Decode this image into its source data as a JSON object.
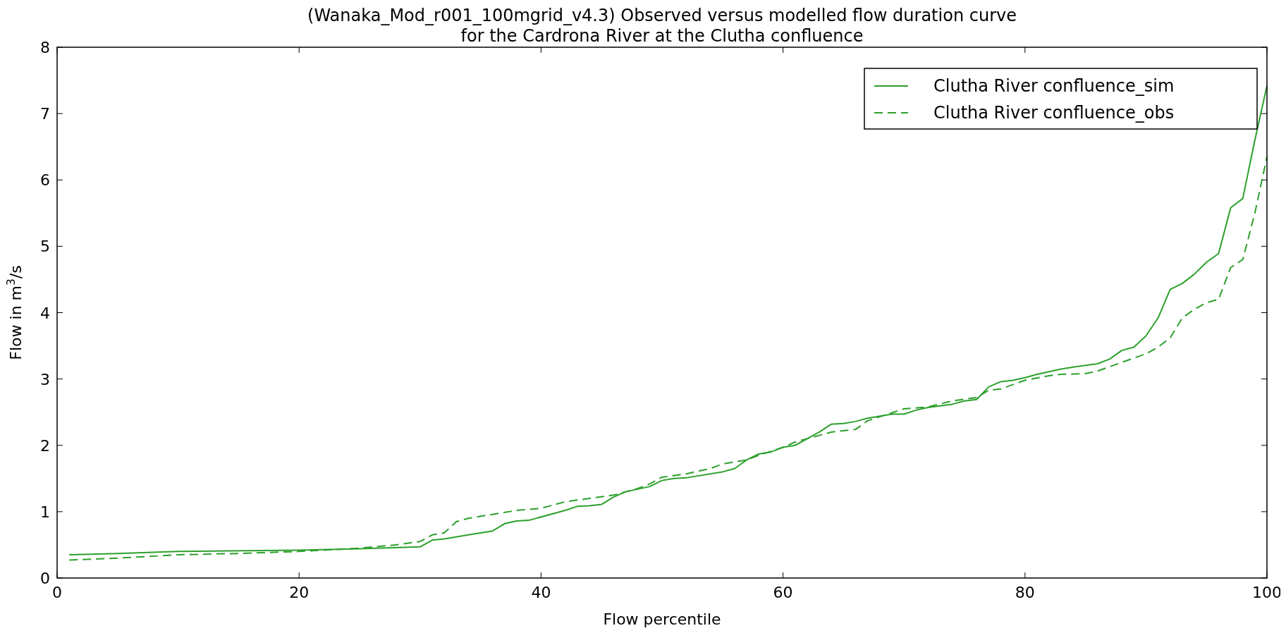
{
  "chart_data": {
    "type": "line",
    "title": "(Wanaka_Mod_r001_100mgrid_v4.3) Observed versus modelled flow duration curve\nfor the Cardrona River at the Clutha confluence",
    "xlabel": "Flow percentile",
    "ylabel": "Flow in m$^{3}$/s",
    "xlim": [
      0,
      100
    ],
    "xticks": [
      0,
      20,
      40,
      60,
      80,
      100
    ],
    "ylim": [
      0,
      8
    ],
    "yticks": [
      0,
      1,
      2,
      3,
      4,
      5,
      6,
      7,
      8
    ],
    "grid": false,
    "legend": "top right",
    "series": [
      {
        "name": "Clutha River confluence_sim",
        "color": "#2ca02c",
        "line_style": "solid",
        "x": [
          1,
          5,
          10,
          20,
          25,
          30,
          31,
          32,
          34,
          36,
          37,
          38,
          39,
          42,
          43,
          44,
          45,
          46,
          47,
          49,
          50,
          51,
          52,
          55,
          56,
          57,
          58,
          59,
          60,
          61,
          62,
          63,
          64,
          65,
          66,
          67,
          69,
          70,
          71,
          72,
          74,
          75,
          76,
          77,
          78,
          79,
          80,
          81,
          83,
          84,
          86,
          87,
          88,
          89,
          90,
          91,
          92,
          93,
          94,
          95,
          96,
          97,
          98,
          99,
          100
        ],
        "values": [
          0.35,
          0.37,
          0.4,
          0.42,
          0.44,
          0.47,
          0.57,
          0.59,
          0.65,
          0.71,
          0.82,
          0.86,
          0.87,
          1.02,
          1.08,
          1.09,
          1.11,
          1.22,
          1.3,
          1.38,
          1.47,
          1.5,
          1.51,
          1.6,
          1.65,
          1.78,
          1.87,
          1.9,
          1.97,
          2.0,
          2.1,
          2.2,
          2.32,
          2.33,
          2.36,
          2.41,
          2.47,
          2.47,
          2.53,
          2.57,
          2.62,
          2.67,
          2.69,
          2.88,
          2.96,
          2.98,
          3.02,
          3.07,
          3.15,
          3.18,
          3.23,
          3.3,
          3.43,
          3.48,
          3.65,
          3.92,
          4.35,
          4.44,
          4.58,
          4.76,
          4.89,
          5.58,
          5.72,
          6.6,
          7.42
        ]
      },
      {
        "name": "Clutha River confluence_obs",
        "color": "#2ca02c",
        "line_style": "dashed",
        "x": [
          1,
          5,
          10,
          15,
          20,
          25,
          28,
          30,
          31,
          32,
          33,
          34,
          36,
          38,
          40,
          42,
          44,
          46,
          48,
          49,
          50,
          52,
          54,
          55,
          57,
          58,
          60,
          61,
          63,
          64,
          66,
          67,
          70,
          72,
          74,
          76,
          77,
          78,
          80,
          82,
          83,
          85,
          86,
          88,
          90,
          91,
          92,
          93,
          94,
          95,
          96,
          97,
          98,
          99,
          100
        ],
        "values": [
          0.27,
          0.3,
          0.35,
          0.37,
          0.4,
          0.45,
          0.5,
          0.55,
          0.65,
          0.68,
          0.85,
          0.9,
          0.96,
          1.02,
          1.05,
          1.15,
          1.2,
          1.25,
          1.35,
          1.42,
          1.52,
          1.57,
          1.65,
          1.72,
          1.78,
          1.85,
          1.97,
          2.05,
          2.15,
          2.2,
          2.24,
          2.37,
          2.55,
          2.58,
          2.67,
          2.72,
          2.83,
          2.85,
          2.98,
          3.05,
          3.07,
          3.08,
          3.12,
          3.25,
          3.38,
          3.48,
          3.62,
          3.92,
          4.05,
          4.15,
          4.2,
          4.68,
          4.8,
          5.5,
          6.35
        ]
      }
    ]
  }
}
